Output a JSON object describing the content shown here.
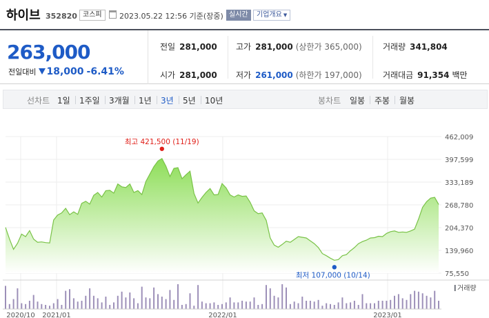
{
  "header": {
    "stock_name": "하이브",
    "stock_code": "352820",
    "market": "코스피",
    "datetime": "2023.05.22 12:56 기준(장중)",
    "realtime_badge": "실시간",
    "company_info_button": "기업개요"
  },
  "summary": {
    "price": "263,000",
    "change_label": "전일대비",
    "change_value": "18,000",
    "change_pct": "-6.41%",
    "prev_close_label": "전일",
    "prev_close": "281,000",
    "open_label": "시가",
    "open": "281,000",
    "high_label": "고가",
    "high": "281,000",
    "upper_limit": "(상한가 365,000)",
    "low_label": "저가",
    "low": "261,000",
    "lower_limit": "(하한가 197,000)",
    "volume_label": "거래량",
    "volume": "341,804",
    "amount_label": "거래대금",
    "amount": "91,354",
    "amount_unit": "백만"
  },
  "period_tabs": {
    "line_title": "선차트",
    "line": [
      "1일",
      "1주일",
      "3개월",
      "1년",
      "3년",
      "5년",
      "10년"
    ],
    "active": "3년",
    "candle_title": "봉차트",
    "candle": [
      "일봉",
      "주봉",
      "월봉"
    ]
  },
  "colors": {
    "accent_blue": "#1e5bc6",
    "up_red": "#e0201a",
    "area_green": "#7fd84a"
  },
  "chart_data": {
    "type": "area",
    "y_ticks": [
      "462,009",
      "397,599",
      "333,189",
      "268,780",
      "204,370",
      "139,960",
      "75,550"
    ],
    "ylim": [
      75550,
      462009
    ],
    "x_tick_labels": [
      "2020/10",
      "2021/01",
      "2022/01",
      "2023/01"
    ],
    "max_annotation": "최고 421,500 (11/19)",
    "min_annotation": "최저 107,000 (10/14)",
    "volume_label": "거래량",
    "series": [
      {
        "values": [
          205000,
          172000,
          143000,
          160000,
          186000,
          179000,
          196000,
          172000,
          163000,
          164000,
          162000,
          161000,
          226000,
          240000,
          246000,
          259000,
          241000,
          249000,
          242000,
          273000,
          279000,
          271000,
          296000,
          304000,
          291000,
          309000,
          310000,
          302000,
          328000,
          320000,
          318000,
          328000,
          304000,
          309000,
          298000,
          335000,
          356000,
          377000,
          393000,
          400000,
          378000,
          349000,
          372000,
          374000,
          343000,
          354000,
          364000,
          301000,
          274000,
          290000,
          304000,
          315000,
          297000,
          298000,
          329000,
          317000,
          297000,
          291000,
          297000,
          293000,
          294000,
          276000,
          252000,
          244000,
          246000,
          225000,
          175000,
          155000,
          149000,
          157000,
          166000,
          163000,
          171000,
          179000,
          177000,
          175000,
          167000,
          159000,
          148000,
          131000,
          125000,
          118000,
          112000,
          114000,
          125000,
          128000,
          139000,
          148000,
          159000,
          165000,
          169000,
          175000,
          176000,
          180000,
          179000,
          188000,
          193000,
          195000,
          191000,
          192000,
          191000,
          195000,
          200000,
          229000,
          262000,
          278000,
          288000,
          290000,
          270000
        ]
      },
      {
        "name": "거래량",
        "values": [
          28,
          6,
          12,
          25,
          7,
          6,
          10,
          17,
          9,
          6,
          5,
          4,
          7,
          12,
          5,
          22,
          24,
          13,
          9,
          10,
          16,
          25,
          16,
          13,
          8,
          15,
          5,
          8,
          16,
          21,
          14,
          20,
          13,
          7,
          27,
          14,
          13,
          26,
          18,
          15,
          12,
          23,
          11,
          30,
          5,
          6,
          19,
          4,
          29,
          9,
          7,
          7,
          8,
          5,
          6,
          8,
          14,
          8,
          8,
          10,
          9,
          9,
          14,
          5,
          6,
          29,
          25,
          16,
          14,
          30,
          26,
          6,
          9,
          7,
          15,
          10,
          10,
          9,
          11,
          4,
          7,
          6,
          5,
          8,
          14,
          7,
          8,
          10,
          5,
          18,
          7,
          7,
          7,
          10,
          10,
          10,
          11,
          16,
          18,
          13,
          11,
          18,
          22,
          21,
          19,
          16,
          14,
          22,
          10
        ]
      }
    ]
  }
}
